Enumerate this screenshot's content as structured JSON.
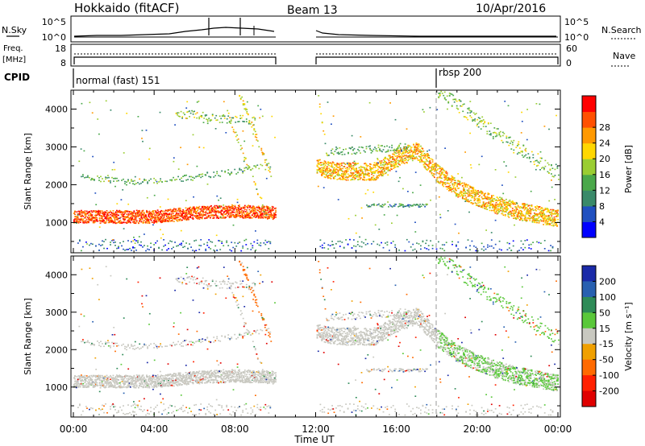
{
  "header": {
    "station": "Hokkaido (fitACF)",
    "beam": "Beam 13",
    "date": "10/Apr/2016"
  },
  "meta_panels": {
    "nsky_label": "N.Sky",
    "nsky_ticks": [
      "10^5",
      "10^0"
    ],
    "nsearch_label": "N.Search",
    "freq_label_line1": "Freq.",
    "freq_label_line2": "[MHz]",
    "freq_ticks": [
      "18",
      "8"
    ],
    "nave_ticks": [
      "60",
      "0"
    ],
    "nave_label": "Nave",
    "cpid_label": "CPID",
    "cpid_segments": [
      "normal (fast) 151",
      "rbsp 200"
    ]
  },
  "colors": {
    "power_scale": [
      "#0000ff",
      "#2050c0",
      "#3a8a6a",
      "#4aa84a",
      "#9acd32",
      "#ffd700",
      "#ff9900",
      "#ff5000",
      "#ff0000"
    ],
    "velocity_scale": [
      "#1a2aa8",
      "#2860b0",
      "#2e8b57",
      "#5ac83a",
      "#c8c8c0",
      "#f0a000",
      "#ff6a00",
      "#ff2000",
      "#e00000"
    ]
  },
  "chart_data": [
    {
      "type": "heatmap",
      "name": "power",
      "ylabel": "Slant Range [km]",
      "x_ticks": [
        "00:00",
        "04:00",
        "08:00",
        "12:00",
        "16:00",
        "20:00",
        "00:00"
      ],
      "xlim_hours": [
        0,
        24
      ],
      "ylim": [
        200,
        4500
      ],
      "y_ticks": [
        1000,
        2000,
        3000,
        4000
      ],
      "data_gap_hours": [
        10,
        12
      ],
      "colorbar": {
        "label": "Power [dB]",
        "ticks": [
          4,
          8,
          12,
          16,
          20,
          24,
          28
        ]
      },
      "echo_bands": [
        {
          "t_hours": [
            0,
            2,
            4,
            6,
            8,
            10
          ],
          "range_km": [
            1150,
            1150,
            1150,
            1250,
            1300,
            1250
          ],
          "power_db": 30
        },
        {
          "t_hours": [
            12,
            13,
            15,
            16,
            17,
            18,
            19,
            20,
            21,
            22,
            23,
            24
          ],
          "range_km": [
            2450,
            2350,
            2350,
            2700,
            2900,
            2300,
            1900,
            1650,
            1450,
            1300,
            1200,
            1100
          ],
          "power_db": 24
        }
      ]
    },
    {
      "type": "heatmap",
      "name": "velocity",
      "ylabel": "Slant Range [km]",
      "xlabel": "Time UT",
      "x_ticks": [
        "00:00",
        "04:00",
        "08:00",
        "12:00",
        "16:00",
        "20:00",
        "00:00"
      ],
      "xlim_hours": [
        0,
        24
      ],
      "ylim": [
        200,
        4500
      ],
      "y_ticks": [
        1000,
        2000,
        3000,
        4000
      ],
      "data_gap_hours": [
        10,
        12
      ],
      "colorbar": {
        "label": "Velocity [m s⁻¹]",
        "ticks": [
          200,
          100,
          50,
          15,
          -15,
          -50,
          -100,
          -200
        ]
      }
    }
  ]
}
